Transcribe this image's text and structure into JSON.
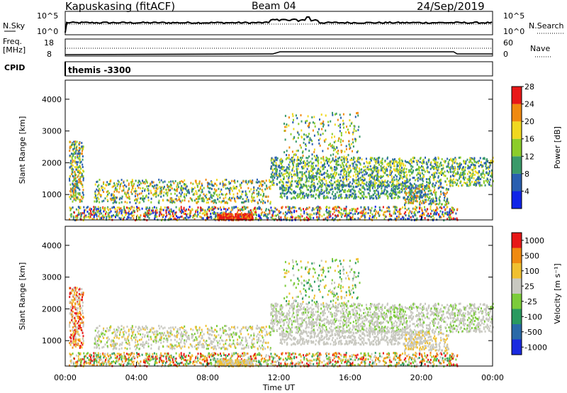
{
  "header": {
    "station": "Kapuskasing (fitACF)",
    "beam": "Beam 04",
    "date": "24/Sep/2019"
  },
  "noise_panel": {
    "left_label": "N.Sky",
    "right_label": "N.Search",
    "left_ticks": [
      "10^5",
      "10^0"
    ],
    "right_ticks": [
      "10^5",
      "10^0"
    ]
  },
  "freq_panel": {
    "left_label_1": "Freq.",
    "left_label_2": "[MHz]",
    "right_label": "Nave",
    "left_ticks": [
      "18",
      "8"
    ],
    "right_ticks": [
      "60",
      "0"
    ]
  },
  "cpid": {
    "label": "CPID",
    "value": "themis -3300"
  },
  "chart_data": [
    {
      "type": "heatmap",
      "name": "power",
      "ylabel": "Slant Range [km]",
      "y_ticks": [
        1000,
        2000,
        3000,
        4000
      ],
      "ylim": [
        200,
        4600
      ],
      "colorbar_label": "Power [dB]",
      "colorbar_ticks": [
        "4",
        "8",
        "12",
        "16",
        "20",
        "24",
        "28"
      ],
      "colorbar_colors": [
        "#1024e8",
        "#2a5fb0",
        "#3a9a6a",
        "#8ccd2a",
        "#f0d820",
        "#f08a10",
        "#e81818"
      ]
    },
    {
      "type": "heatmap",
      "name": "velocity",
      "ylabel": "Slant Range [km]",
      "y_ticks": [
        1000,
        2000,
        3000,
        4000
      ],
      "ylim": [
        200,
        4600
      ],
      "colorbar_label": "Velocity [m s⁻¹]",
      "colorbar_ticks": [
        "1000",
        "500",
        "100",
        "25",
        "-25",
        "-100",
        "-500",
        "-1000"
      ],
      "colorbar_colors": [
        "#1a2ae0",
        "#2a6aa8",
        "#2a9a60",
        "#7ccc3a",
        "#c8c8c0",
        "#f0c030",
        "#f08a10",
        "#e81818"
      ]
    }
  ],
  "x_axis": {
    "ticks": [
      "00:00",
      "04:00",
      "08:00",
      "12:00",
      "16:00",
      "20:00",
      "00:00"
    ],
    "label": "Time UT"
  }
}
